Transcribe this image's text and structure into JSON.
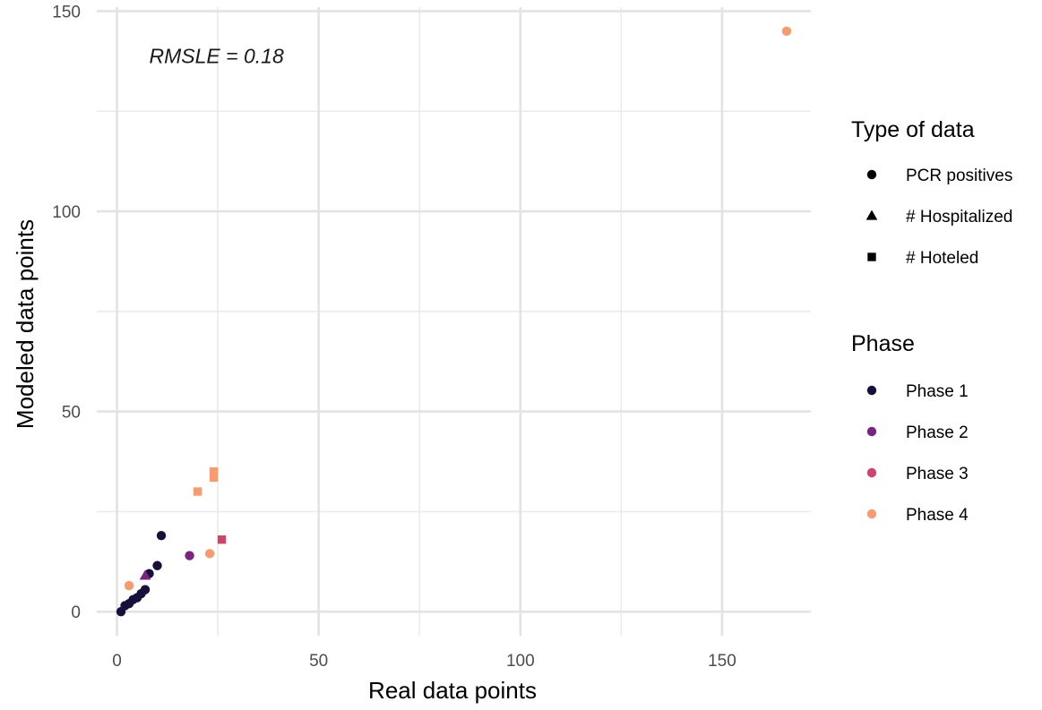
{
  "chart_data": {
    "type": "scatter",
    "xlabel": "Real data points",
    "ylabel": "Modeled data points",
    "xlim": [
      -5,
      172
    ],
    "ylim": [
      -6,
      151
    ],
    "x_ticks": [
      0,
      50,
      100,
      150
    ],
    "y_ticks": [
      0,
      50,
      100,
      150
    ],
    "x_minor_ticks": [
      25,
      75,
      125
    ],
    "y_minor_ticks": [
      25,
      75,
      125
    ],
    "grid": true,
    "annotation": "RMSLE = 0.18",
    "annotation_position": {
      "x": 8,
      "y": 137
    },
    "legend_position": "right",
    "legends": [
      {
        "title": "Type of data",
        "entries": [
          {
            "label": "PCR positives",
            "shape": "circle"
          },
          {
            "label": "# Hospitalized",
            "shape": "triangle"
          },
          {
            "label": "# Hoteled",
            "shape": "square"
          }
        ]
      },
      {
        "title": "Phase",
        "entries": [
          {
            "label": "Phase 1",
            "color": "#170f3c"
          },
          {
            "label": "Phase 2",
            "color": "#7b2382"
          },
          {
            "label": "Phase 3",
            "color": "#d2436b"
          },
          {
            "label": "Phase 4",
            "color": "#f89c6f"
          }
        ]
      }
    ],
    "series": [
      {
        "name": "Phase 1",
        "color": "#170f3c",
        "shape": "circle",
        "points": [
          [
            1,
            0
          ],
          [
            2,
            1.5
          ],
          [
            3,
            2
          ],
          [
            4,
            3
          ],
          [
            5,
            3.5
          ],
          [
            6,
            4.5
          ],
          [
            7,
            5.5
          ],
          [
            8,
            9.5
          ],
          [
            10,
            11.5
          ],
          [
            11,
            19
          ]
        ]
      },
      {
        "name": "Phase 2",
        "color": "#7b2382",
        "shape": "circle",
        "points": [
          [
            18,
            14
          ]
        ]
      },
      {
        "name": "Phase 2",
        "color": "#7b2382",
        "shape": "triangle",
        "points": [
          [
            7,
            9
          ]
        ]
      },
      {
        "name": "Phase 3",
        "color": "#d2436b",
        "shape": "square",
        "points": [
          [
            26,
            18
          ]
        ]
      },
      {
        "name": "Phase 4",
        "color": "#f89c6f",
        "shape": "circle",
        "points": [
          [
            3,
            6.5
          ],
          [
            23,
            14.5
          ],
          [
            166,
            145
          ]
        ]
      },
      {
        "name": "Phase 4",
        "color": "#f89c6f",
        "shape": "square",
        "points": [
          [
            20,
            30
          ],
          [
            24,
            33.5
          ],
          [
            24,
            35
          ]
        ]
      }
    ]
  }
}
